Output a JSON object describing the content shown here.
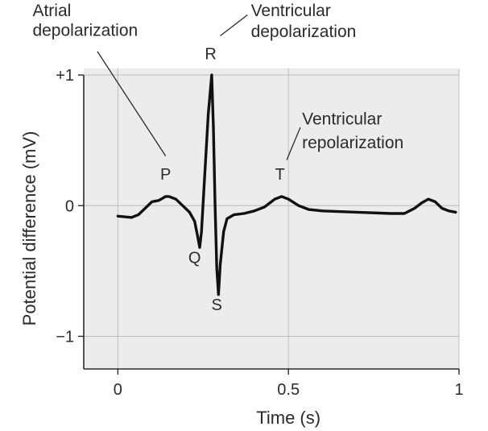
{
  "chart_data": {
    "type": "line",
    "title": "",
    "xlabel": "Time (s)",
    "ylabel": "Potential difference (mV)",
    "xlim": [
      -0.1,
      1.0
    ],
    "ylim": [
      -1.25,
      1.05
    ],
    "xticks": [
      {
        "value": 0,
        "label": "0"
      },
      {
        "value": 0.5,
        "label": "0.5"
      },
      {
        "value": 1,
        "label": "1"
      }
    ],
    "yticks": [
      {
        "value": 1,
        "label": "+1"
      },
      {
        "value": 0,
        "label": "0"
      },
      {
        "value": -1,
        "label": "−1"
      }
    ],
    "grid": true,
    "background_color": "#ececec",
    "line_color": "#111111",
    "series": [
      {
        "x": [
          0,
          0.04,
          0.06,
          0.08,
          0.1,
          0.12,
          0.14,
          0.15,
          0.17,
          0.19,
          0.21,
          0.225,
          0.235,
          0.24,
          0.245,
          0.255,
          0.265,
          0.275,
          0.28,
          0.285,
          0.29,
          0.295,
          0.3,
          0.31,
          0.32,
          0.34,
          0.37,
          0.4,
          0.43,
          0.46,
          0.48,
          0.5,
          0.53,
          0.56,
          0.6,
          0.7,
          0.8,
          0.84,
          0.87,
          0.89,
          0.91,
          0.93,
          0.95,
          0.97,
          0.99
        ],
        "y": [
          -0.08,
          -0.09,
          -0.07,
          -0.02,
          0.03,
          0.04,
          0.07,
          0.07,
          0.05,
          0.0,
          -0.05,
          -0.12,
          -0.25,
          -0.32,
          -0.2,
          0.25,
          0.7,
          1.0,
          0.6,
          0.0,
          -0.48,
          -0.68,
          -0.45,
          -0.2,
          -0.1,
          -0.07,
          -0.06,
          -0.04,
          -0.01,
          0.05,
          0.07,
          0.05,
          0.0,
          -0.03,
          -0.04,
          -0.05,
          -0.06,
          -0.06,
          -0.02,
          0.02,
          0.05,
          0.03,
          -0.02,
          -0.04,
          -0.05
        ]
      }
    ],
    "annotations": [
      {
        "text": "P",
        "x": 0.14,
        "y": 0.2
      },
      {
        "text": "Q",
        "x": 0.225,
        "y": -0.44
      },
      {
        "text": "R",
        "x": 0.272,
        "y": 1.12
      },
      {
        "text": "S",
        "x": 0.29,
        "y": -0.8
      },
      {
        "text": "T",
        "x": 0.475,
        "y": 0.2
      },
      {
        "text": "Atrial",
        "x": -0.25,
        "y": 1.45
      },
      {
        "text": "depolarization",
        "x": -0.25,
        "y": 1.3
      },
      {
        "text": "Ventricular",
        "x": 0.39,
        "y": 1.45
      },
      {
        "text": "depolarization",
        "x": 0.39,
        "y": 1.29
      },
      {
        "text": "Ventricular",
        "x": 0.54,
        "y": 0.62
      },
      {
        "text": "repolarization",
        "x": 0.54,
        "y": 0.44
      }
    ]
  }
}
